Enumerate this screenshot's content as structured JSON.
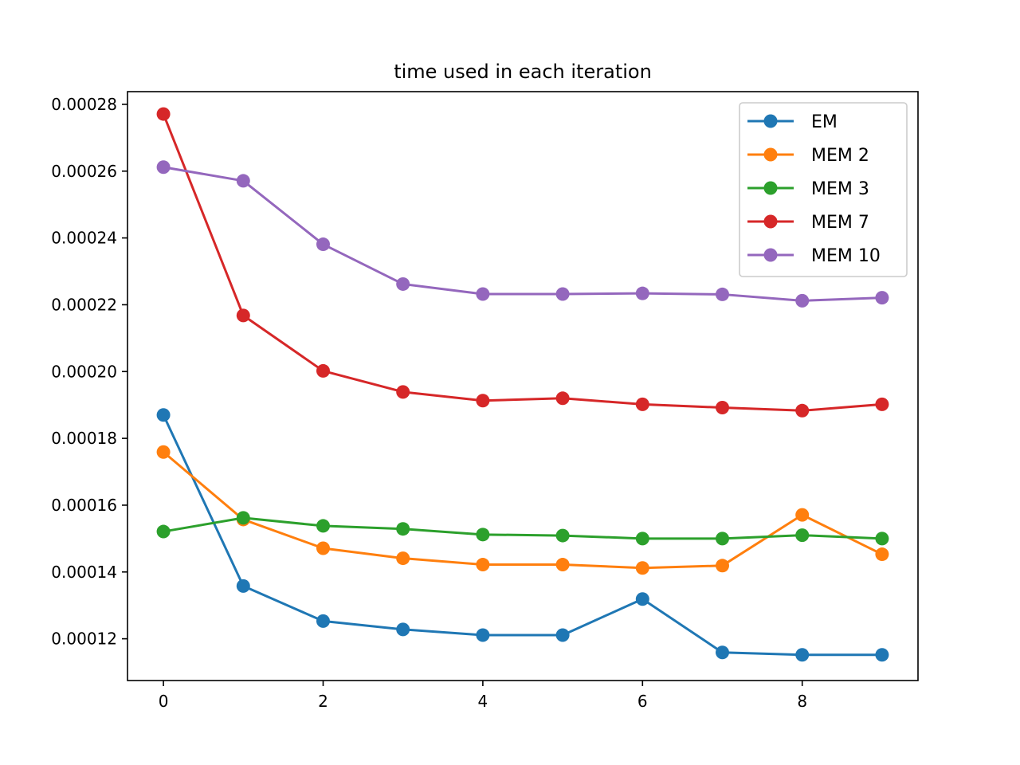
{
  "chart_data": {
    "type": "line",
    "title": "time used in each iteration",
    "xlabel": "",
    "ylabel": "",
    "x": [
      0,
      1,
      2,
      3,
      4,
      5,
      6,
      7,
      8,
      9
    ],
    "xlim": [
      -0.45,
      9.45
    ],
    "ylim": [
      0.0001075,
      0.0002838
    ],
    "xticks": [
      0,
      2,
      4,
      6,
      8
    ],
    "xtick_labels": [
      "0",
      "2",
      "4",
      "6",
      "8"
    ],
    "yticks": [
      0.00012,
      0.00014,
      0.00016,
      0.00018,
      0.0002,
      0.00022,
      0.00024,
      0.00026,
      0.00028
    ],
    "ytick_labels": [
      "0.00012",
      "0.00014",
      "0.00016",
      "0.00018",
      "0.00020",
      "0.00022",
      "0.00024",
      "0.00026",
      "0.00028"
    ],
    "grid": false,
    "legend_position": "top-right",
    "series": [
      {
        "name": "EM",
        "color": "#1f77b4",
        "values": [
          0.000187,
          0.0001358,
          0.0001253,
          0.0001228,
          0.0001211,
          0.0001211,
          0.0001319,
          0.0001159,
          0.0001152,
          0.0001152
        ]
      },
      {
        "name": "MEM 2",
        "color": "#ff7f0e",
        "values": [
          0.0001759,
          0.0001557,
          0.0001471,
          0.0001441,
          0.0001422,
          0.0001422,
          0.0001412,
          0.0001419,
          0.0001571,
          0.0001453
        ]
      },
      {
        "name": "MEM 3",
        "color": "#2ca02c",
        "values": [
          0.0001521,
          0.0001562,
          0.0001538,
          0.0001529,
          0.0001512,
          0.0001509,
          0.00015,
          0.00015,
          0.000151,
          0.00015
        ]
      },
      {
        "name": "MEM 7",
        "color": "#d62728",
        "values": [
          0.0002771,
          0.0002168,
          0.0002002,
          0.0001939,
          0.0001913,
          0.000192,
          0.0001902,
          0.0001892,
          0.0001883,
          0.0001902
        ]
      },
      {
        "name": "MEM 10",
        "color": "#9467bd",
        "values": [
          0.0002612,
          0.0002571,
          0.0002381,
          0.0002262,
          0.0002232,
          0.0002232,
          0.0002234,
          0.0002231,
          0.0002212,
          0.0002221
        ]
      }
    ]
  }
}
